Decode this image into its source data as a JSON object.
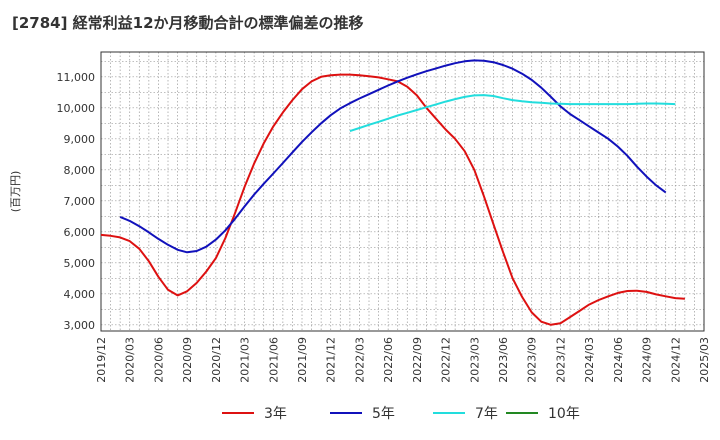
{
  "title": "[2784]  経常利益12か月移動合計の標準偏差の推移",
  "chart_data": {
    "type": "line",
    "title": "[2784]  経常利益12か月移動合計の標準偏差の推移",
    "ylabel": "(百万円)",
    "xlabel": "",
    "ylim": [
      2800,
      11800
    ],
    "yticks": [
      3000,
      4000,
      5000,
      6000,
      7000,
      8000,
      9000,
      10000,
      11000
    ],
    "ytick_labels": [
      "3,000",
      "4,000",
      "5,000",
      "6,000",
      "7,000",
      "8,000",
      "9,000",
      "10,000",
      "11,000"
    ],
    "xlim": [
      "2019-12",
      "2025-03"
    ],
    "xtick_labels": [
      "2019/12",
      "2020/03",
      "2020/06",
      "2020/09",
      "2020/12",
      "2021/03",
      "2021/06",
      "2021/09",
      "2021/12",
      "2022/03",
      "2022/06",
      "2022/09",
      "2022/12",
      "2023/03",
      "2023/06",
      "2023/09",
      "2023/12",
      "2024/03",
      "2024/06",
      "2024/09",
      "2024/12",
      "2025/03"
    ],
    "grid": true,
    "legend_position": "bottom",
    "series": [
      {
        "name": "3年",
        "color": "#dd1111",
        "points": [
          [
            "2019-12",
            5900
          ],
          [
            "2020-01",
            5870
          ],
          [
            "2020-02",
            5820
          ],
          [
            "2020-03",
            5700
          ],
          [
            "2020-04",
            5450
          ],
          [
            "2020-05",
            5050
          ],
          [
            "2020-06",
            4550
          ],
          [
            "2020-07",
            4130
          ],
          [
            "2020-08",
            3950
          ],
          [
            "2020-09",
            4080
          ],
          [
            "2020-10",
            4350
          ],
          [
            "2020-11",
            4720
          ],
          [
            "2020-12",
            5150
          ],
          [
            "2021-01",
            5800
          ],
          [
            "2021-02",
            6600
          ],
          [
            "2021-03",
            7450
          ],
          [
            "2021-04",
            8200
          ],
          [
            "2021-05",
            8850
          ],
          [
            "2021-06",
            9400
          ],
          [
            "2021-07",
            9850
          ],
          [
            "2021-08",
            10250
          ],
          [
            "2021-09",
            10600
          ],
          [
            "2021-10",
            10850
          ],
          [
            "2021-11",
            11000
          ],
          [
            "2021-12",
            11050
          ],
          [
            "2022-01",
            11070
          ],
          [
            "2022-02",
            11070
          ],
          [
            "2022-03",
            11050
          ],
          [
            "2022-04",
            11020
          ],
          [
            "2022-05",
            10980
          ],
          [
            "2022-06",
            10920
          ],
          [
            "2022-07",
            10850
          ],
          [
            "2022-08",
            10680
          ],
          [
            "2022-09",
            10400
          ],
          [
            "2022-10",
            10000
          ],
          [
            "2022-11",
            9650
          ],
          [
            "2022-12",
            9300
          ],
          [
            "2023-01",
            9000
          ],
          [
            "2023-02",
            8600
          ],
          [
            "2023-03",
            8000
          ],
          [
            "2023-04",
            7150
          ],
          [
            "2023-05",
            6250
          ],
          [
            "2023-06",
            5350
          ],
          [
            "2023-07",
            4500
          ],
          [
            "2023-08",
            3900
          ],
          [
            "2023-09",
            3400
          ],
          [
            "2023-10",
            3100
          ],
          [
            "2023-11",
            3000
          ],
          [
            "2023-12",
            3050
          ],
          [
            "2024-01",
            3250
          ],
          [
            "2024-02",
            3450
          ],
          [
            "2024-03",
            3650
          ],
          [
            "2024-04",
            3800
          ],
          [
            "2024-05",
            3920
          ],
          [
            "2024-06",
            4030
          ],
          [
            "2024-07",
            4090
          ],
          [
            "2024-08",
            4100
          ],
          [
            "2024-09",
            4060
          ],
          [
            "2024-10",
            3980
          ],
          [
            "2024-11",
            3920
          ],
          [
            "2024-12",
            3860
          ],
          [
            "2025-01",
            3840
          ]
        ]
      },
      {
        "name": "5年",
        "color": "#1111bb",
        "points": [
          [
            "2020-02",
            6480
          ],
          [
            "2020-03",
            6350
          ],
          [
            "2020-04",
            6180
          ],
          [
            "2020-05",
            5980
          ],
          [
            "2020-06",
            5770
          ],
          [
            "2020-07",
            5580
          ],
          [
            "2020-08",
            5420
          ],
          [
            "2020-09",
            5340
          ],
          [
            "2020-10",
            5380
          ],
          [
            "2020-11",
            5520
          ],
          [
            "2020-12",
            5750
          ],
          [
            "2021-01",
            6050
          ],
          [
            "2021-02",
            6420
          ],
          [
            "2021-03",
            6820
          ],
          [
            "2021-04",
            7200
          ],
          [
            "2021-05",
            7550
          ],
          [
            "2021-06",
            7880
          ],
          [
            "2021-07",
            8220
          ],
          [
            "2021-08",
            8560
          ],
          [
            "2021-09",
            8900
          ],
          [
            "2021-10",
            9210
          ],
          [
            "2021-11",
            9500
          ],
          [
            "2021-12",
            9760
          ],
          [
            "2022-01",
            9980
          ],
          [
            "2022-02",
            10150
          ],
          [
            "2022-03",
            10300
          ],
          [
            "2022-04",
            10440
          ],
          [
            "2022-05",
            10580
          ],
          [
            "2022-06",
            10720
          ],
          [
            "2022-07",
            10850
          ],
          [
            "2022-08",
            10970
          ],
          [
            "2022-09",
            11080
          ],
          [
            "2022-10",
            11180
          ],
          [
            "2022-11",
            11270
          ],
          [
            "2022-12",
            11360
          ],
          [
            "2023-01",
            11440
          ],
          [
            "2023-02",
            11500
          ],
          [
            "2023-03",
            11530
          ],
          [
            "2023-04",
            11520
          ],
          [
            "2023-05",
            11470
          ],
          [
            "2023-06",
            11380
          ],
          [
            "2023-07",
            11260
          ],
          [
            "2023-08",
            11100
          ],
          [
            "2023-09",
            10900
          ],
          [
            "2023-10",
            10650
          ],
          [
            "2023-11",
            10350
          ],
          [
            "2023-12",
            10050
          ],
          [
            "2024-01",
            9800
          ],
          [
            "2024-02",
            9600
          ],
          [
            "2024-03",
            9400
          ],
          [
            "2024-04",
            9200
          ],
          [
            "2024-05",
            9000
          ],
          [
            "2024-06",
            8750
          ],
          [
            "2024-07",
            8450
          ],
          [
            "2024-08",
            8100
          ],
          [
            "2024-09",
            7780
          ],
          [
            "2024-10",
            7500
          ],
          [
            "2024-11",
            7270
          ]
        ]
      },
      {
        "name": "7年",
        "color": "#22dddd",
        "points": [
          [
            "2022-02",
            9250
          ],
          [
            "2022-03",
            9350
          ],
          [
            "2022-04",
            9450
          ],
          [
            "2022-05",
            9550
          ],
          [
            "2022-06",
            9650
          ],
          [
            "2022-07",
            9750
          ],
          [
            "2022-08",
            9840
          ],
          [
            "2022-09",
            9930
          ],
          [
            "2022-10",
            10020
          ],
          [
            "2022-11",
            10110
          ],
          [
            "2022-12",
            10200
          ],
          [
            "2023-01",
            10280
          ],
          [
            "2023-02",
            10350
          ],
          [
            "2023-03",
            10400
          ],
          [
            "2023-04",
            10410
          ],
          [
            "2023-05",
            10380
          ],
          [
            "2023-06",
            10310
          ],
          [
            "2023-07",
            10250
          ],
          [
            "2023-08",
            10210
          ],
          [
            "2023-09",
            10180
          ],
          [
            "2023-10",
            10160
          ],
          [
            "2023-11",
            10140
          ],
          [
            "2023-12",
            10130
          ],
          [
            "2024-01",
            10120
          ],
          [
            "2024-02",
            10120
          ],
          [
            "2024-03",
            10120
          ],
          [
            "2024-04",
            10120
          ],
          [
            "2024-05",
            10120
          ],
          [
            "2024-06",
            10120
          ],
          [
            "2024-07",
            10120
          ],
          [
            "2024-08",
            10130
          ],
          [
            "2024-09",
            10140
          ],
          [
            "2024-10",
            10140
          ],
          [
            "2024-11",
            10130
          ],
          [
            "2024-12",
            10120
          ]
        ]
      },
      {
        "name": "10年",
        "color": "#228822",
        "points": []
      }
    ]
  }
}
